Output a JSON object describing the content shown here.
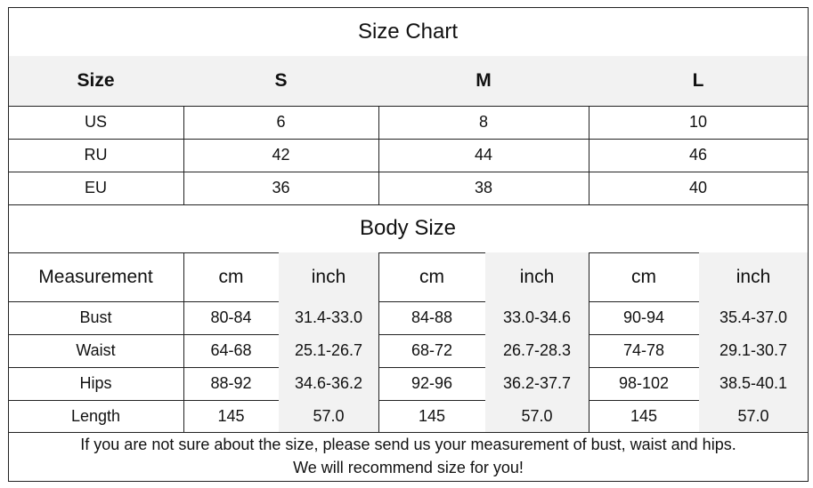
{
  "size_chart": {
    "title": "Size Chart",
    "header": [
      "Size",
      "S",
      "M",
      "L"
    ],
    "rows": [
      [
        "US",
        "6",
        "8",
        "10"
      ],
      [
        "RU",
        "42",
        "44",
        "46"
      ],
      [
        "EU",
        "36",
        "38",
        "40"
      ]
    ]
  },
  "body_size": {
    "title": "Body Size",
    "header": [
      "Measurement",
      "cm",
      "inch",
      "cm",
      "inch",
      "cm",
      "inch"
    ],
    "rows": [
      [
        "Bust",
        "80-84",
        "31.4-33.0",
        "84-88",
        "33.0-34.6",
        "90-94",
        "35.4-37.0"
      ],
      [
        "Waist",
        "64-68",
        "25.1-26.7",
        "68-72",
        "26.7-28.3",
        "74-78",
        "29.1-30.7"
      ],
      [
        "Hips",
        "88-92",
        "34.6-36.2",
        "92-96",
        "36.2-37.7",
        "98-102",
        "38.5-40.1"
      ],
      [
        "Length",
        "145",
        "57.0",
        "145",
        "57.0",
        "145",
        "57.0"
      ]
    ]
  },
  "note": {
    "line1": "If you are not sure about the size, please send us your measurement of bust, waist and hips.",
    "line2": "We will recommend size for you!"
  },
  "colors": {
    "shade": "#f2f2f2",
    "border": "#222222"
  }
}
